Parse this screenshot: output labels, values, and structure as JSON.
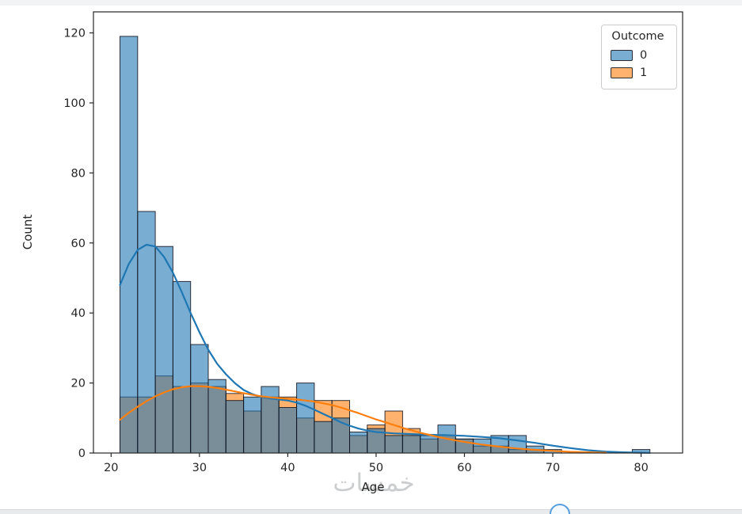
{
  "watermark": {
    "text": "خمسات"
  },
  "chart_data": {
    "type": "histogram",
    "title": "",
    "xlabel": "Age",
    "ylabel": "Count",
    "xlim": [
      18,
      84.7
    ],
    "ylim": [
      0,
      126
    ],
    "x_ticks": [
      20,
      30,
      40,
      50,
      60,
      70,
      80
    ],
    "y_ticks": [
      0,
      20,
      40,
      60,
      80,
      100,
      120
    ],
    "bin_start": 21,
    "bin_width": 2,
    "grid": false,
    "legend": {
      "title": "Outcome",
      "position": "upper right"
    },
    "series": [
      {
        "name": "0",
        "color": "#1f77b4",
        "fill_alpha": 0.6,
        "bar_values": [
          119,
          69,
          59,
          49,
          31,
          21,
          15,
          16,
          19,
          13,
          20,
          9,
          10,
          6,
          7,
          5,
          5,
          5,
          8,
          4,
          4,
          5,
          5,
          2,
          1,
          0,
          0,
          0,
          0,
          1
        ]
      },
      {
        "name": "1",
        "color": "#ff7f0e",
        "fill_alpha": 0.6,
        "bar_values": [
          16,
          16,
          22,
          19,
          20,
          19,
          17,
          12,
          16,
          16,
          10,
          15,
          15,
          5,
          8,
          12,
          7,
          4,
          5,
          4,
          2,
          2,
          1,
          1,
          0,
          0,
          0,
          0,
          0,
          0
        ]
      }
    ],
    "kde_curves": [
      {
        "name": "0",
        "color": "#1f77b4",
        "points": [
          [
            21,
            48
          ],
          [
            22,
            54
          ],
          [
            23,
            58
          ],
          [
            24,
            59.5
          ],
          [
            25,
            59
          ],
          [
            26,
            56
          ],
          [
            27,
            51.5
          ],
          [
            28,
            46
          ],
          [
            29,
            40
          ],
          [
            30,
            34.5
          ],
          [
            31,
            29.5
          ],
          [
            32,
            25.5
          ],
          [
            33,
            22.5
          ],
          [
            34,
            20
          ],
          [
            35,
            18
          ],
          [
            36,
            16.8
          ],
          [
            37,
            16
          ],
          [
            38,
            15.6
          ],
          [
            39,
            15.3
          ],
          [
            40,
            15
          ],
          [
            41,
            14.4
          ],
          [
            42,
            13.5
          ],
          [
            43,
            12.4
          ],
          [
            44,
            11.2
          ],
          [
            45,
            10
          ],
          [
            46,
            8.8
          ],
          [
            47,
            7.8
          ],
          [
            48,
            7
          ],
          [
            49,
            6.4
          ],
          [
            50,
            6
          ],
          [
            52,
            5.6
          ],
          [
            54,
            5.4
          ],
          [
            56,
            5.2
          ],
          [
            58,
            5.1
          ],
          [
            60,
            4.9
          ],
          [
            62,
            4.6
          ],
          [
            64,
            4.2
          ],
          [
            66,
            3.6
          ],
          [
            68,
            2.9
          ],
          [
            70,
            2.1
          ],
          [
            72,
            1.4
          ],
          [
            74,
            0.8
          ],
          [
            76,
            0.4
          ],
          [
            78,
            0.2
          ],
          [
            80,
            0.1
          ],
          [
            81,
            0.05
          ]
        ]
      },
      {
        "name": "1",
        "color": "#ff7f0e",
        "points": [
          [
            21,
            9.5
          ],
          [
            22,
            11.5
          ],
          [
            23,
            13.2
          ],
          [
            24,
            14.8
          ],
          [
            25,
            16.2
          ],
          [
            26,
            17.3
          ],
          [
            27,
            18.2
          ],
          [
            28,
            18.8
          ],
          [
            29,
            19.1
          ],
          [
            30,
            19.1
          ],
          [
            31,
            18.9
          ],
          [
            32,
            18.6
          ],
          [
            33,
            18.1
          ],
          [
            34,
            17.6
          ],
          [
            35,
            17.1
          ],
          [
            36,
            16.6
          ],
          [
            37,
            16.2
          ],
          [
            38,
            15.9
          ],
          [
            39,
            15.7
          ],
          [
            40,
            15.5
          ],
          [
            41,
            15.3
          ],
          [
            42,
            15
          ],
          [
            43,
            14.7
          ],
          [
            44,
            14.2
          ],
          [
            45,
            13.7
          ],
          [
            46,
            13
          ],
          [
            47,
            12.2
          ],
          [
            48,
            11.4
          ],
          [
            49,
            10.5
          ],
          [
            50,
            9.6
          ],
          [
            51,
            8.8
          ],
          [
            52,
            8
          ],
          [
            53,
            7.2
          ],
          [
            54,
            6.5
          ],
          [
            55,
            5.8
          ],
          [
            56,
            5.2
          ],
          [
            57,
            4.6
          ],
          [
            58,
            4.1
          ],
          [
            59,
            3.6
          ],
          [
            60,
            3.2
          ],
          [
            62,
            2.4
          ],
          [
            64,
            1.8
          ],
          [
            66,
            1.3
          ],
          [
            68,
            0.9
          ],
          [
            70,
            0.6
          ],
          [
            72,
            0.35
          ],
          [
            74,
            0.2
          ],
          [
            76,
            0.1
          ]
        ]
      }
    ]
  }
}
